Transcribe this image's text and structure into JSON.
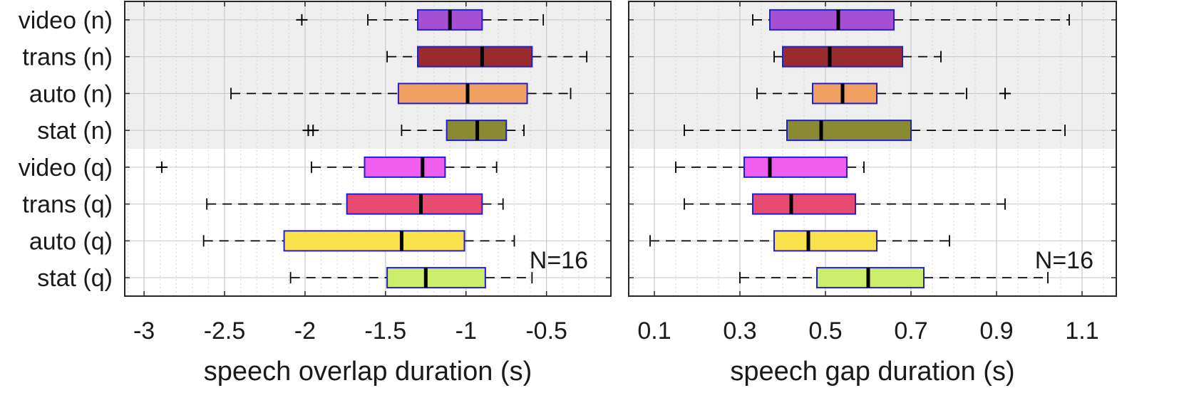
{
  "colors": {
    "box_edge": "#1f1fd6",
    "median": "#000000",
    "whisker": "#000000",
    "shade": "#efefef",
    "grid_major": "#c8c8c8",
    "grid_minor": "#d0d0d0",
    "frame": "#262626"
  },
  "chart_data": [
    {
      "type": "box",
      "xlabel": "speech overlap duration (s)",
      "xlim": [
        -3.12,
        -0.1
      ],
      "ticks": [
        -3,
        -2.5,
        -2,
        -1.5,
        -1,
        -0.5
      ],
      "tick_labels": [
        "-3",
        "-2.5",
        "-2",
        "-1.5",
        "-1",
        "-0.5"
      ],
      "minor_step": 0.1,
      "categories": [
        "video (n)",
        "trans (n)",
        "auto (n)",
        "stat (n)",
        "video (q)",
        "trans (q)",
        "auto (q)",
        "stat (q)"
      ],
      "shaded_group": [
        "video (n)",
        "trans (n)",
        "auto (n)",
        "stat (n)"
      ],
      "annotation": "N=16",
      "series": [
        {
          "name": "video (n)",
          "color": "#a64fd0",
          "whisker_low": -1.61,
          "q1": -1.3,
          "median": -1.1,
          "q3": -0.9,
          "whisker_high": -0.52,
          "outliers": [
            -2.02
          ]
        },
        {
          "name": "trans (n)",
          "color": "#9a2b2b",
          "whisker_low": -1.49,
          "q1": -1.3,
          "median": -0.9,
          "q3": -0.59,
          "whisker_high": -0.25,
          "outliers": []
        },
        {
          "name": "auto (n)",
          "color": "#f2a061",
          "whisker_low": -2.46,
          "q1": -1.42,
          "median": -0.99,
          "q3": -0.62,
          "whisker_high": -0.35,
          "outliers": []
        },
        {
          "name": "stat (n)",
          "color": "#8a8a33",
          "whisker_low": -1.4,
          "q1": -1.12,
          "median": -0.93,
          "q3": -0.75,
          "whisker_high": -0.64,
          "outliers": [
            -1.98,
            -1.95
          ]
        },
        {
          "name": "video (q)",
          "color": "#f05ef0",
          "whisker_low": -1.96,
          "q1": -1.63,
          "median": -1.27,
          "q3": -1.13,
          "whisker_high": -0.81,
          "outliers": [
            -2.89
          ]
        },
        {
          "name": "trans (q)",
          "color": "#e84a70",
          "whisker_low": -2.61,
          "q1": -1.74,
          "median": -1.28,
          "q3": -0.9,
          "whisker_high": -0.77,
          "outliers": []
        },
        {
          "name": "auto (q)",
          "color": "#f8e14a",
          "whisker_low": -2.63,
          "q1": -2.13,
          "median": -1.4,
          "q3": -1.01,
          "whisker_high": -0.7,
          "outliers": []
        },
        {
          "name": "stat (q)",
          "color": "#cdee6a",
          "whisker_low": -2.09,
          "q1": -1.49,
          "median": -1.25,
          "q3": -0.88,
          "whisker_high": -0.59,
          "outliers": []
        }
      ]
    },
    {
      "type": "box",
      "xlabel": "speech gap duration (s)",
      "xlim": [
        0.04,
        1.18
      ],
      "ticks": [
        0.1,
        0.3,
        0.5,
        0.7,
        0.9,
        1.1
      ],
      "tick_labels": [
        "0.1",
        "0.3",
        "0.5",
        "0.7",
        "0.9",
        "1.1"
      ],
      "minor_step": 0.05,
      "categories": [
        "video (n)",
        "trans (n)",
        "auto (n)",
        "stat (n)",
        "video (q)",
        "trans (q)",
        "auto (q)",
        "stat (q)"
      ],
      "shaded_group": [
        "video (n)",
        "trans (n)",
        "auto (n)",
        "stat (n)"
      ],
      "annotation": "N=16",
      "series": [
        {
          "name": "video (n)",
          "color": "#a64fd0",
          "whisker_low": 0.33,
          "q1": 0.37,
          "median": 0.53,
          "q3": 0.66,
          "whisker_high": 1.07,
          "outliers": []
        },
        {
          "name": "trans (n)",
          "color": "#9a2b2b",
          "whisker_low": 0.38,
          "q1": 0.4,
          "median": 0.51,
          "q3": 0.68,
          "whisker_high": 0.77,
          "outliers": []
        },
        {
          "name": "auto (n)",
          "color": "#f2a061",
          "whisker_low": 0.34,
          "q1": 0.47,
          "median": 0.54,
          "q3": 0.62,
          "whisker_high": 0.83,
          "outliers": [
            0.92
          ]
        },
        {
          "name": "stat (n)",
          "color": "#8a8a33",
          "whisker_low": 0.17,
          "q1": 0.41,
          "median": 0.49,
          "q3": 0.7,
          "whisker_high": 1.06,
          "outliers": []
        },
        {
          "name": "video (q)",
          "color": "#f05ef0",
          "whisker_low": 0.15,
          "q1": 0.31,
          "median": 0.37,
          "q3": 0.55,
          "whisker_high": 0.59,
          "outliers": []
        },
        {
          "name": "trans (q)",
          "color": "#e84a70",
          "whisker_low": 0.17,
          "q1": 0.33,
          "median": 0.42,
          "q3": 0.57,
          "whisker_high": 0.92,
          "outliers": []
        },
        {
          "name": "auto (q)",
          "color": "#f8e14a",
          "whisker_low": 0.09,
          "q1": 0.38,
          "median": 0.46,
          "q3": 0.62,
          "whisker_high": 0.79,
          "outliers": []
        },
        {
          "name": "stat (q)",
          "color": "#cdee6a",
          "whisker_low": 0.3,
          "q1": 0.48,
          "median": 0.6,
          "q3": 0.73,
          "whisker_high": 1.02,
          "outliers": []
        }
      ]
    }
  ]
}
